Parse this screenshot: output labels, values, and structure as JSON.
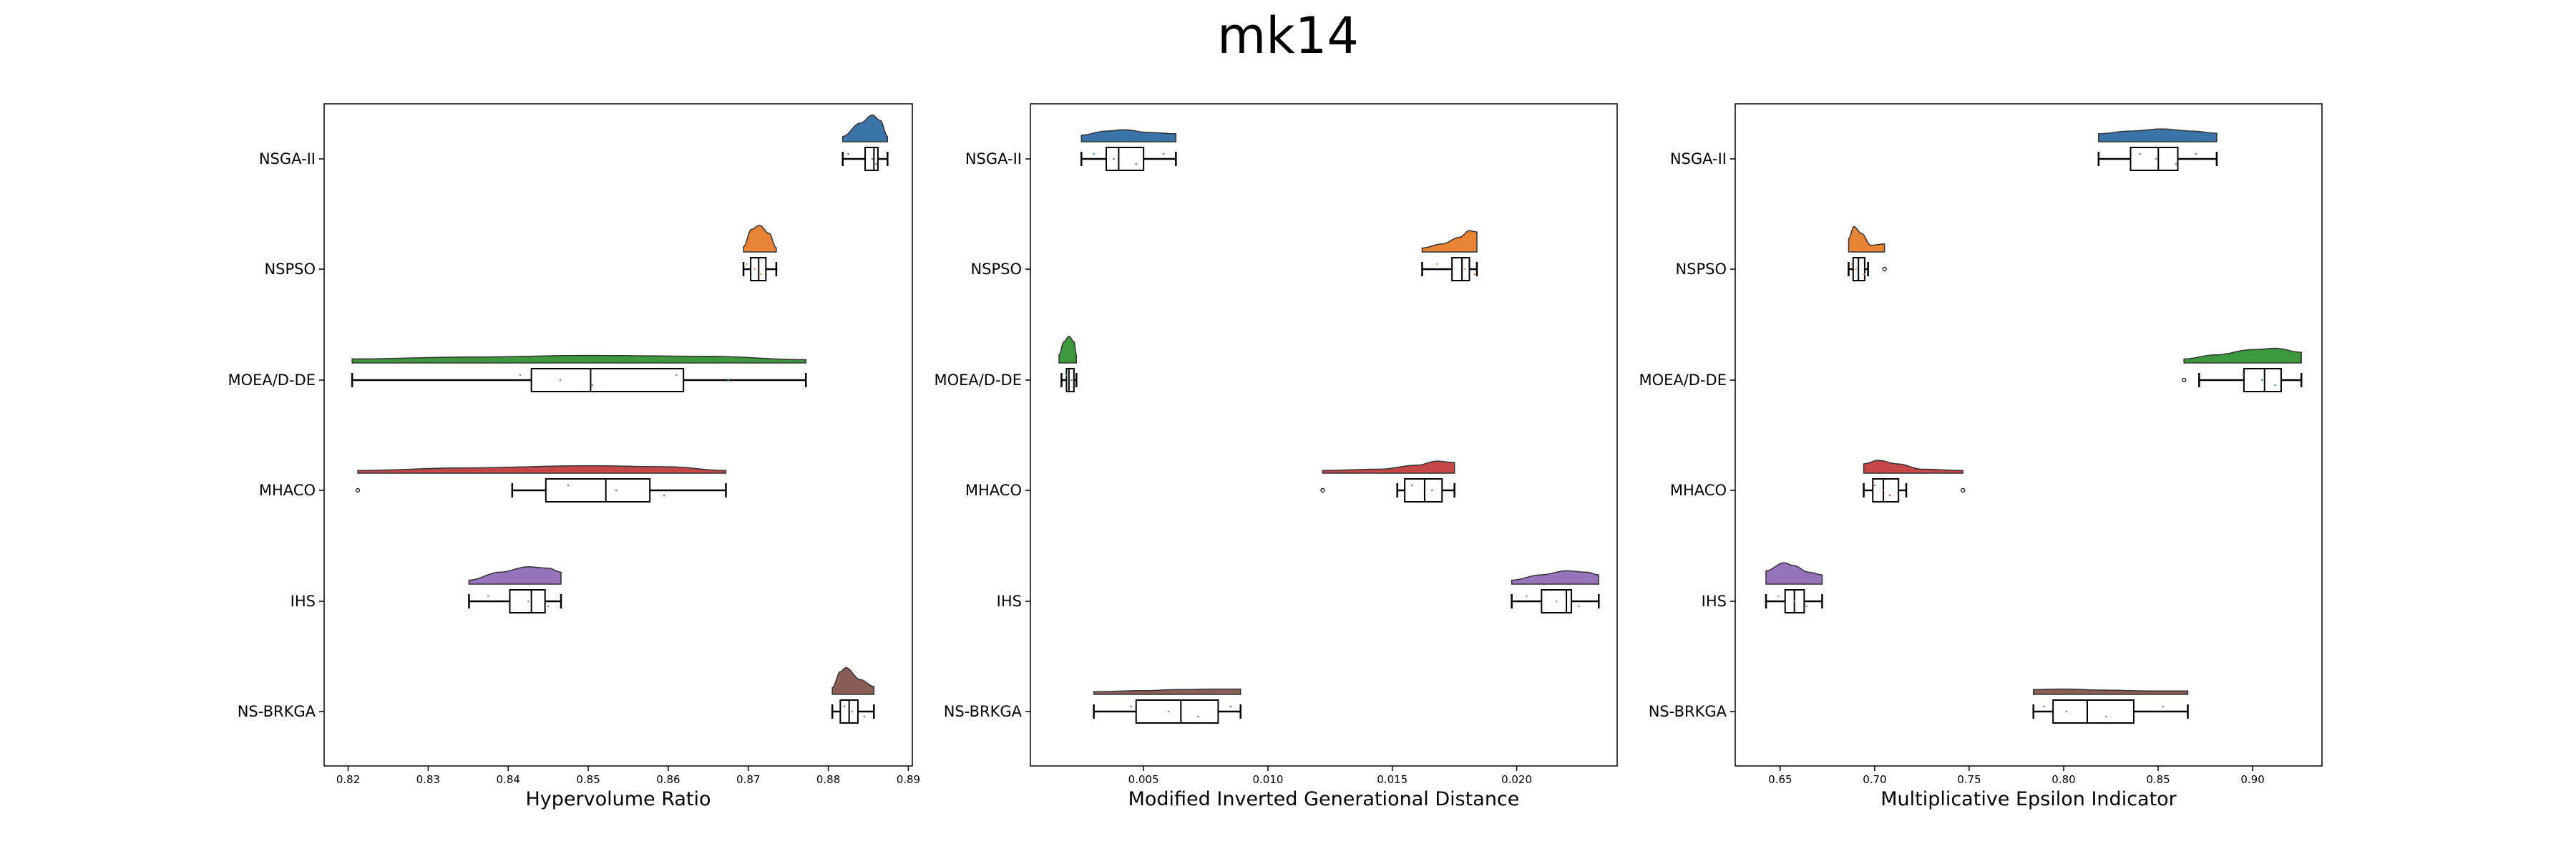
{
  "title": "mk14",
  "categories": [
    "NSGA-II",
    "NSPSO",
    "MOEA/D-DE",
    "MHACO",
    "IHS",
    "NS-BRKGA"
  ],
  "colors": [
    "#3a74a8",
    "#e98334",
    "#3d993d",
    "#c64747",
    "#9673ba",
    "#8a5e55"
  ],
  "chart_data": [
    {
      "type": "raincloud",
      "xlabel": "Hypervolume Ratio",
      "xlim": [
        0.817,
        0.8905
      ],
      "xticks": [
        0.82,
        0.83,
        0.84,
        0.85,
        0.86,
        0.87,
        0.88,
        0.89
      ],
      "xtick_labels": [
        "0.82",
        "0.83",
        "0.84",
        "0.85",
        "0.86",
        "0.87",
        "0.88",
        "0.89"
      ],
      "series": [
        {
          "whislo": 0.8818,
          "q1": 0.8846,
          "med": 0.8857,
          "q3": 0.8862,
          "whishi": 0.8874,
          "density": [
            [
              0.8818,
              0.2
            ],
            [
              0.884,
              0.7
            ],
            [
              0.8855,
              1.0
            ],
            [
              0.8865,
              0.8
            ],
            [
              0.8874,
              0.2
            ]
          ],
          "points": [
            0.8825,
            0.8855,
            0.886
          ]
        },
        {
          "whislo": 0.8694,
          "q1": 0.8703,
          "med": 0.8713,
          "q3": 0.8722,
          "whishi": 0.8735,
          "density": [
            [
              0.8694,
              0.2
            ],
            [
              0.8704,
              0.85
            ],
            [
              0.8714,
              1.0
            ],
            [
              0.8726,
              0.7
            ],
            [
              0.8735,
              0.15
            ]
          ],
          "points": [
            0.8698,
            0.8708,
            0.8716
          ]
        },
        {
          "whislo": 0.8205,
          "q1": 0.8429,
          "med": 0.8503,
          "q3": 0.8619,
          "whishi": 0.8772,
          "density": [
            [
              0.8205,
              0.15
            ],
            [
              0.835,
              0.22
            ],
            [
              0.85,
              0.28
            ],
            [
              0.865,
              0.25
            ],
            [
              0.8772,
              0.12
            ]
          ],
          "points": [
            0.8415,
            0.8465,
            0.8505,
            0.861,
            0.8675
          ]
        },
        {
          "whislo": 0.8405,
          "q1": 0.8447,
          "med": 0.8522,
          "q3": 0.8577,
          "whishi": 0.8672,
          "outliers": [
            0.8212
          ],
          "density": [
            [
              0.8212,
              0.1
            ],
            [
              0.835,
              0.2
            ],
            [
              0.85,
              0.28
            ],
            [
              0.86,
              0.24
            ],
            [
              0.8672,
              0.1
            ]
          ],
          "points": [
            0.8475,
            0.8535,
            0.8595
          ]
        },
        {
          "whislo": 0.8351,
          "q1": 0.8402,
          "med": 0.8429,
          "q3": 0.8446,
          "whishi": 0.8466,
          "density": [
            [
              0.8351,
              0.15
            ],
            [
              0.839,
              0.45
            ],
            [
              0.8425,
              0.65
            ],
            [
              0.845,
              0.6
            ],
            [
              0.8466,
              0.45
            ]
          ],
          "points": [
            0.8375,
            0.8425,
            0.845
          ]
        },
        {
          "whislo": 0.8805,
          "q1": 0.8815,
          "med": 0.8826,
          "q3": 0.8837,
          "whishi": 0.8857,
          "density": [
            [
              0.8805,
              0.25
            ],
            [
              0.8815,
              0.85
            ],
            [
              0.8822,
              1.0
            ],
            [
              0.884,
              0.55
            ],
            [
              0.8857,
              0.3
            ]
          ],
          "points": [
            0.882,
            0.883,
            0.8845
          ]
        }
      ]
    },
    {
      "type": "raincloud",
      "xlabel": "Modified Inverted Generational Distance",
      "xlim": [
        0.00045,
        0.02404
      ],
      "xticks": [
        0.005,
        0.01,
        0.015,
        0.02
      ],
      "xtick_labels": [
        "0.005",
        "0.010",
        "0.015",
        "0.020"
      ],
      "series": [
        {
          "whislo": 0.0025,
          "q1": 0.0035,
          "med": 0.004,
          "q3": 0.005,
          "whishi": 0.0063,
          "density": [
            [
              0.0025,
              0.25
            ],
            [
              0.0035,
              0.4
            ],
            [
              0.0042,
              0.45
            ],
            [
              0.0052,
              0.35
            ],
            [
              0.0063,
              0.3
            ]
          ],
          "points": [
            0.003,
            0.0038,
            0.0047,
            0.0058
          ]
        },
        {
          "whislo": 0.0162,
          "q1": 0.0174,
          "med": 0.0178,
          "q3": 0.0181,
          "whishi": 0.0184,
          "density": [
            [
              0.0162,
              0.15
            ],
            [
              0.017,
              0.3
            ],
            [
              0.0177,
              0.55
            ],
            [
              0.0181,
              0.8
            ],
            [
              0.0184,
              0.75
            ]
          ],
          "points": [
            0.0168,
            0.0179,
            0.0183
          ]
        },
        {
          "whislo": 0.0017,
          "q1": 0.0019,
          "med": 0.002,
          "q3": 0.0022,
          "whishi": 0.0023,
          "density": [
            [
              0.0016,
              0.3
            ],
            [
              0.0018,
              0.8
            ],
            [
              0.002,
              1.0
            ],
            [
              0.0022,
              0.8
            ],
            [
              0.0023,
              0.3
            ]
          ],
          "points": [
            0.0019,
            0.0021
          ]
        },
        {
          "whislo": 0.0152,
          "q1": 0.0155,
          "med": 0.0163,
          "q3": 0.017,
          "whishi": 0.0175,
          "outliers": [
            0.0122
          ],
          "density": [
            [
              0.0122,
              0.1
            ],
            [
              0.0145,
              0.15
            ],
            [
              0.016,
              0.3
            ],
            [
              0.0168,
              0.45
            ],
            [
              0.0175,
              0.4
            ]
          ],
          "points": [
            0.0158,
            0.0166
          ]
        },
        {
          "whislo": 0.0198,
          "q1": 0.021,
          "med": 0.022,
          "q3": 0.0222,
          "whishi": 0.0233,
          "density": [
            [
              0.0198,
              0.15
            ],
            [
              0.021,
              0.35
            ],
            [
              0.022,
              0.5
            ],
            [
              0.0228,
              0.45
            ],
            [
              0.0233,
              0.35
            ]
          ],
          "points": [
            0.0204,
            0.0216,
            0.0225
          ]
        },
        {
          "whislo": 0.003,
          "q1": 0.0047,
          "med": 0.0065,
          "q3": 0.008,
          "whishi": 0.0089,
          "density": [
            [
              0.003,
              0.1
            ],
            [
              0.005,
              0.14
            ],
            [
              0.0065,
              0.18
            ],
            [
              0.008,
              0.2
            ],
            [
              0.0089,
              0.2
            ]
          ],
          "points": [
            0.0045,
            0.006,
            0.0072,
            0.0085
          ]
        }
      ]
    },
    {
      "type": "raincloud",
      "xlabel": "Multiplicative Epsilon Indicator",
      "xlim": [
        0.6262,
        0.9367
      ],
      "xticks": [
        0.65,
        0.7,
        0.75,
        0.8,
        0.85,
        0.9
      ],
      "xtick_labels": [
        "0.65",
        "0.70",
        "0.75",
        "0.80",
        "0.85",
        "0.90"
      ],
      "series": [
        {
          "whislo": 0.8185,
          "q1": 0.8354,
          "med": 0.8501,
          "q3": 0.8604,
          "whishi": 0.881,
          "density": [
            [
              0.8185,
              0.3
            ],
            [
              0.835,
              0.4
            ],
            [
              0.852,
              0.48
            ],
            [
              0.868,
              0.4
            ],
            [
              0.881,
              0.32
            ]
          ],
          "points": [
            0.8405,
            0.849,
            0.8595,
            0.87
          ]
        },
        {
          "whislo": 0.6862,
          "q1": 0.6886,
          "med": 0.6914,
          "q3": 0.6947,
          "whishi": 0.6965,
          "outliers": [
            0.7052
          ],
          "density": [
            [
              0.6862,
              0.5
            ],
            [
              0.689,
              0.95
            ],
            [
              0.693,
              0.7
            ],
            [
              0.698,
              0.25
            ],
            [
              0.7052,
              0.3
            ]
          ],
          "points": [
            0.688,
            0.69,
            0.6945
          ]
        },
        {
          "whislo": 0.8717,
          "q1": 0.8954,
          "med": 0.9063,
          "q3": 0.9151,
          "whishi": 0.9258,
          "outliers": [
            0.8637
          ],
          "density": [
            [
              0.8637,
              0.15
            ],
            [
              0.88,
              0.3
            ],
            [
              0.9,
              0.5
            ],
            [
              0.912,
              0.55
            ],
            [
              0.9258,
              0.4
            ]
          ],
          "points": [
            0.895,
            0.905,
            0.912
          ]
        },
        {
          "whislo": 0.6942,
          "q1": 0.699,
          "med": 0.7046,
          "q3": 0.7126,
          "whishi": 0.7167,
          "outliers": [
            0.7467
          ],
          "density": [
            [
              0.6942,
              0.35
            ],
            [
              0.702,
              0.48
            ],
            [
              0.712,
              0.35
            ],
            [
              0.725,
              0.15
            ],
            [
              0.7467,
              0.1
            ]
          ],
          "points": [
            0.7,
            0.7045,
            0.708
          ]
        },
        {
          "whislo": 0.6425,
          "q1": 0.6526,
          "med": 0.6575,
          "q3": 0.6627,
          "whishi": 0.6722,
          "density": [
            [
              0.6425,
              0.5
            ],
            [
              0.652,
              0.8
            ],
            [
              0.657,
              0.7
            ],
            [
              0.665,
              0.45
            ],
            [
              0.6722,
              0.35
            ]
          ],
          "points": [
            0.649,
            0.6575,
            0.664
          ]
        },
        {
          "whislo": 0.784,
          "q1": 0.7944,
          "med": 0.8125,
          "q3": 0.8371,
          "whishi": 0.8657,
          "density": [
            [
              0.784,
              0.18
            ],
            [
              0.8,
              0.2
            ],
            [
              0.82,
              0.16
            ],
            [
              0.845,
              0.13
            ],
            [
              0.8657,
              0.13
            ]
          ],
          "points": [
            0.7895,
            0.8015,
            0.8225,
            0.8525
          ]
        }
      ]
    }
  ]
}
